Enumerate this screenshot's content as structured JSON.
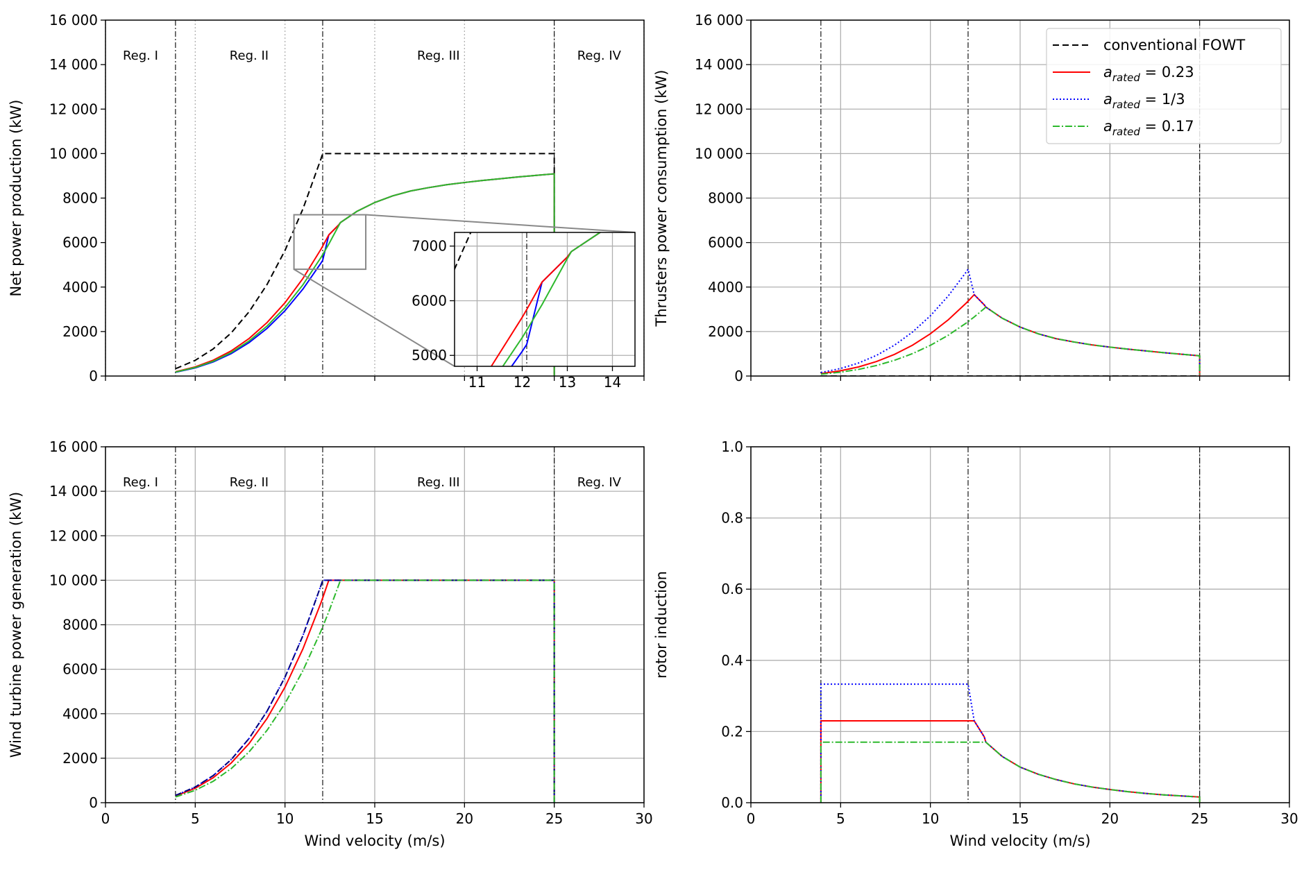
{
  "chart_data": [
    {
      "type": "line",
      "ylabel": "Net power production (kW)",
      "x": [
        3.9,
        4,
        5,
        6,
        7,
        8,
        9,
        10,
        11,
        12,
        12.1,
        12.44,
        13,
        13.09,
        14,
        15,
        16,
        17,
        18,
        19,
        20,
        21,
        22,
        23,
        24,
        25,
        25
      ],
      "xlim": [
        0,
        30
      ],
      "xticks": [
        0,
        5,
        10,
        15,
        20,
        25,
        30
      ],
      "xticklabels": false,
      "ylim": [
        0,
        16000
      ],
      "yticks": [
        0,
        2000,
        4000,
        6000,
        8000,
        {
          "value": 10000,
          "label": "10 000"
        },
        {
          "value": 12000,
          "label": "12 000"
        },
        {
          "value": 14000,
          "label": "14 000"
        },
        {
          "value": 16000,
          "label": "16 000"
        }
      ],
      "grid": true,
      "grid_axis": "x",
      "grid_style": "dotted",
      "vlines": [
        3.9,
        12.1,
        25
      ],
      "regions": [
        "Reg. I",
        "Reg. II",
        "Reg. III",
        "Reg. IV"
      ],
      "series": [
        {
          "color": "#000000",
          "dash": "dashed",
          "values": [
            335,
            361,
            706,
            1219,
            1936,
            2890,
            4115,
            5645,
            7514,
            9755,
            10000,
            10000,
            10000,
            10000,
            10000,
            10000,
            10000,
            10000,
            10000,
            10000,
            10000,
            10000,
            10000,
            10000,
            10000,
            10000,
            0
          ]
        },
        {
          "color": "#0000ff",
          "dash": "solid",
          "values": [
            174,
            188,
            367,
            634,
            1007,
            1503,
            2140,
            2936,
            3908,
            5074,
            5201,
            6342,
            6800,
            6900,
            7400,
            7800,
            8100,
            8320,
            8470,
            8600,
            8700,
            8790,
            8870,
            8950,
            9020,
            9090,
            0
          ]
        },
        {
          "color": "#ff0000",
          "dash": "solid",
          "values": [
            195,
            210,
            412,
            712,
            1130,
            1687,
            2403,
            3296,
            4388,
            5697,
            5839,
            6342,
            6800,
            6900,
            7400,
            7800,
            8100,
            8320,
            8470,
            8600,
            8700,
            8790,
            8870,
            8950,
            9020,
            9090,
            0
          ]
        },
        {
          "color": "#2db92d",
          "dash": "solid",
          "values": [
            183,
            197,
            385,
            666,
            1057,
            1578,
            2247,
            3082,
            4103,
            5326,
            5460,
            5930,
            6772,
            6900,
            7400,
            7800,
            8100,
            8320,
            8470,
            8600,
            8700,
            8790,
            8870,
            8950,
            9020,
            9090,
            0
          ]
        }
      ],
      "inset": {
        "xlim": [
          10.5,
          14.5
        ],
        "xticks": [
          11,
          12,
          13,
          14
        ],
        "ylim": [
          4800,
          7250
        ],
        "yticks": [
          5000,
          6000,
          7000
        ],
        "grid": true
      }
    },
    {
      "type": "line",
      "ylabel": "Thrusters power consumption (kW)",
      "x": [
        3.9,
        4,
        5,
        6,
        7,
        8,
        9,
        10,
        11,
        12,
        12.1,
        12.44,
        13,
        13.09,
        14,
        15,
        16,
        17,
        18,
        19,
        20,
        21,
        22,
        23,
        24,
        25,
        25
      ],
      "xlim": [
        0,
        30
      ],
      "xticks": [
        0,
        5,
        10,
        15,
        20,
        25,
        30
      ],
      "xticklabels": false,
      "ylim": [
        0,
        16000
      ],
      "yticks": [
        0,
        2000,
        4000,
        6000,
        8000,
        {
          "value": 10000,
          "label": "10 000"
        },
        {
          "value": 12000,
          "label": "12 000"
        },
        {
          "value": 14000,
          "label": "14 000"
        },
        {
          "value": 16000,
          "label": "16 000"
        }
      ],
      "grid": true,
      "vlines": [
        3.9,
        12.1,
        25
      ],
      "legend": "upper right",
      "series": [
        {
          "name": "conventional FOWT",
          "color": "#000000",
          "dash": "dashed",
          "values": [
            0,
            0,
            0,
            0,
            0,
            0,
            0,
            0,
            0,
            0,
            0,
            0,
            0,
            0,
            0,
            0,
            0,
            0,
            0,
            0,
            0,
            0,
            0,
            0,
            0,
            0,
            0
          ]
        },
        {
          "name": "arated = 0.23",
          "name_style": "subscript",
          "color": "#ff0000",
          "dash": "solid",
          "values": [
            113,
            122,
            238,
            410,
            652,
            973,
            1385,
            1900,
            2529,
            3283,
            3366,
            3658,
            3200,
            3100,
            2600,
            2200,
            1900,
            1680,
            1530,
            1400,
            1300,
            1210,
            1130,
            1050,
            980,
            910,
            0
          ]
        },
        {
          "name": "arated = 1/3",
          "name_style": "subscript",
          "color": "#0000ff",
          "dash": "dotted",
          "values": [
            161,
            173,
            339,
            585,
            929,
            1387,
            1975,
            2709,
            3606,
            4681,
            4799,
            3658,
            3200,
            3100,
            2600,
            2200,
            1900,
            1680,
            1530,
            1400,
            1300,
            1210,
            1130,
            1050,
            980,
            910,
            0
          ]
        },
        {
          "name": "arated = 0.17",
          "name_style": "subscript",
          "color": "#2db92d",
          "dash": "dashdot",
          "values": [
            82,
            88,
            173,
            298,
            473,
            707,
            1006,
            1380,
            1837,
            2385,
            2445,
            2655,
            3032,
            3100,
            2600,
            2200,
            1900,
            1680,
            1530,
            1400,
            1300,
            1210,
            1130,
            1050,
            980,
            910,
            0
          ]
        }
      ]
    },
    {
      "type": "line",
      "ylabel": "Wind turbine power generation (kW)",
      "xlabel": "Wind velocity (m/s)",
      "x": [
        3.9,
        4,
        5,
        6,
        7,
        8,
        9,
        10,
        11,
        12,
        12.1,
        12.44,
        13,
        13.09,
        14,
        15,
        16,
        17,
        18,
        19,
        20,
        21,
        22,
        23,
        24,
        25,
        25
      ],
      "xlim": [
        0,
        30
      ],
      "xticks": [
        0,
        5,
        10,
        15,
        20,
        25,
        30
      ],
      "ylim": [
        0,
        16000
      ],
      "yticks": [
        0,
        2000,
        4000,
        6000,
        8000,
        {
          "value": 10000,
          "label": "10 000"
        },
        {
          "value": 12000,
          "label": "12 000"
        },
        {
          "value": 14000,
          "label": "14 000"
        },
        {
          "value": 16000,
          "label": "16 000"
        }
      ],
      "grid": true,
      "vlines": [
        3.9,
        12.1,
        25
      ],
      "regions": [
        "Reg. I",
        "Reg. II",
        "Reg. III",
        "Reg. IV"
      ],
      "series": [
        {
          "color": "#ff0000",
          "dash": "solid",
          "values": [
            308,
            332,
            650,
            1122,
            1782,
            2660,
            3788,
            5196,
            6917,
            8980,
            9205,
            10000,
            10000,
            10000,
            10000,
            10000,
            10000,
            10000,
            10000,
            10000,
            10000,
            10000,
            10000,
            10000,
            10000,
            10000,
            0
          ]
        },
        {
          "color": "#0000ff",
          "dash": "dotted",
          "values": [
            335,
            361,
            706,
            1219,
            1936,
            2890,
            4115,
            5645,
            7514,
            9755,
            10000,
            10000,
            10000,
            10000,
            10000,
            10000,
            10000,
            10000,
            10000,
            10000,
            10000,
            10000,
            10000,
            10000,
            10000,
            10000,
            0
          ]
        },
        {
          "color": "#000080",
          "dash": "dashed",
          "values": [
            335,
            361,
            706,
            1219,
            1936,
            2890,
            4115,
            5645,
            7514,
            9755,
            10000,
            10000,
            10000,
            10000,
            10000,
            10000,
            10000,
            10000,
            10000,
            10000,
            10000,
            10000,
            10000,
            10000,
            10000,
            10000,
            0
          ]
        },
        {
          "color": "#2db92d",
          "dash": "dashdot",
          "values": [
            265,
            285,
            558,
            964,
            1530,
            2285,
            3253,
            4462,
            5940,
            7711,
            7905,
            8585,
            9804,
            10000,
            10000,
            10000,
            10000,
            10000,
            10000,
            10000,
            10000,
            10000,
            10000,
            10000,
            10000,
            10000,
            0
          ]
        }
      ]
    },
    {
      "type": "line",
      "ylabel": "rotor induction",
      "xlabel": "Wind velocity (m/s)",
      "x": [
        3.9,
        3.9,
        12.1,
        12.44,
        13,
        13.09,
        14,
        15,
        16,
        17,
        18,
        19,
        20,
        21,
        22,
        23,
        24,
        25,
        25
      ],
      "xlim": [
        0,
        30
      ],
      "xticks": [
        0,
        5,
        10,
        15,
        20,
        25,
        30
      ],
      "ylim": [
        0,
        1
      ],
      "yticks": [
        {
          "value": 0,
          "label": "0.0"
        },
        0.2,
        0.4,
        0.6,
        0.8,
        {
          "value": 1,
          "label": "1.0"
        }
      ],
      "grid": true,
      "vlines": [
        3.9,
        12.1,
        25
      ],
      "series": [
        {
          "color": "#ff0000",
          "dash": "solid",
          "values": [
            0,
            0.23,
            0.23,
            0.23,
            0.185,
            0.17,
            0.13,
            0.1,
            0.08,
            0.065,
            0.053,
            0.044,
            0.037,
            0.031,
            0.026,
            0.022,
            0.019,
            0.016,
            0
          ]
        },
        {
          "color": "#0000ff",
          "dash": "dotted",
          "values": [
            0,
            0.333,
            0.333,
            0.23,
            0.185,
            0.17,
            0.13,
            0.1,
            0.08,
            0.065,
            0.053,
            0.044,
            0.037,
            0.031,
            0.026,
            0.022,
            0.019,
            0.016,
            0
          ]
        },
        {
          "color": "#2db92d",
          "dash": "dashdot",
          "values": [
            0,
            0.17,
            0.17,
            0.17,
            0.17,
            0.17,
            0.13,
            0.1,
            0.08,
            0.065,
            0.053,
            0.044,
            0.037,
            0.031,
            0.026,
            0.022,
            0.019,
            0.016,
            0
          ]
        }
      ]
    }
  ]
}
